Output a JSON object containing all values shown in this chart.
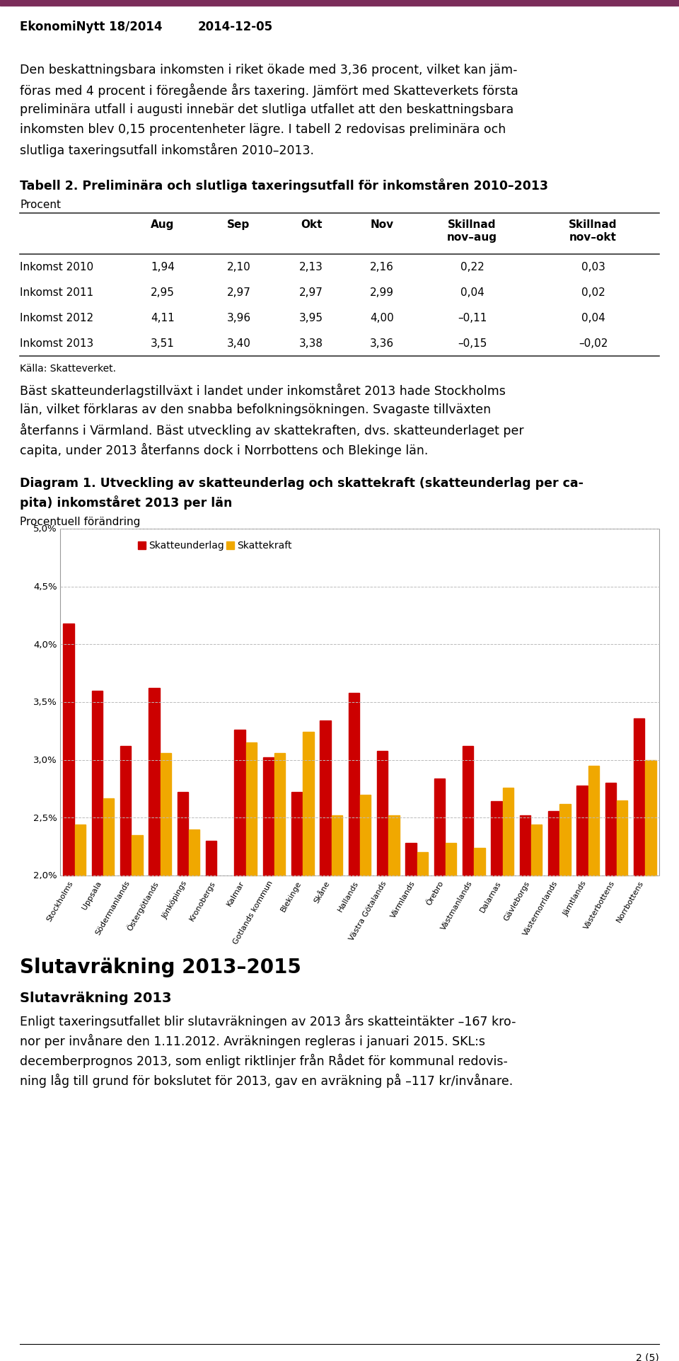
{
  "header_left": "EkonomiNytt 18/2014",
  "header_right": "2014-12-05",
  "header_bar_color": "#7b2d5a",
  "table_title": "Tabell 2. Preliminära och slutliga taxeringsutfall för inkomståren 2010–2013",
  "table_unit": "Procent",
  "table_rows": [
    [
      "Inkomst 2010",
      "1,94",
      "2,10",
      "2,13",
      "2,16",
      "0,22",
      "0,03"
    ],
    [
      "Inkomst 2011",
      "2,95",
      "2,97",
      "2,97",
      "2,99",
      "0,04",
      "0,02"
    ],
    [
      "Inkomst 2012",
      "4,11",
      "3,96",
      "3,95",
      "4,00",
      "–0,11",
      "0,04"
    ],
    [
      "Inkomst 2013",
      "3,51",
      "3,40",
      "3,38",
      "3,36",
      "–0,15",
      "–0,02"
    ]
  ],
  "table_source": "Källa: Skatteverket.",
  "diagram_title_line1": "Diagram 1. Utveckling av skatteunderlag och skattekraft (skatteunderlag per ca-",
  "diagram_title_line2": "pita) inkomståret 2013 per län",
  "diagram_unit": "Procentuell förändring",
  "chart_categories": [
    "Stockholms",
    "Uppsala",
    "Södermanlands",
    "Östergötlands",
    "Jönköpings",
    "Kronobergs",
    "Kalmar",
    "Gotlands kommun",
    "Blekinge",
    "Skåne",
    "Hallands",
    "Västra Götalands",
    "Värmlands",
    "Örebro",
    "Västmanlands",
    "Dalarnas",
    "Gävleborgs",
    "Västernorrlands",
    "Jämtlands",
    "Västerbottens",
    "Norrbottens"
  ],
  "skatteunderlag": [
    4.18,
    3.6,
    3.12,
    3.62,
    2.72,
    2.3,
    3.26,
    3.02,
    2.72,
    3.34,
    3.58,
    3.08,
    2.28,
    2.84,
    3.12,
    2.64,
    2.52,
    2.56,
    2.78,
    2.8,
    3.36
  ],
  "skattekraft": [
    2.44,
    2.67,
    2.35,
    3.06,
    2.4,
    null,
    3.15,
    3.06,
    3.24,
    2.52,
    2.7,
    2.52,
    2.2,
    2.28,
    2.24,
    2.76,
    2.44,
    2.62,
    2.95,
    2.65,
    3.0
  ],
  "bar_color_red": "#cc0000",
  "bar_color_yellow": "#f0a800",
  "slut_title": "Slutavräkning 2013–2015",
  "slut_sub": "Slutavräkning 2013",
  "page_number": "2 (5)"
}
